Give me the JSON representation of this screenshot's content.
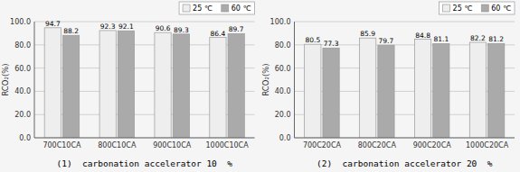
{
  "chart_data": [
    {
      "type": "bar",
      "title": "(1)  carbonation accelerator 10  %",
      "categories": [
        "700C10CA",
        "800C10CA",
        "900C10CA",
        "1000C10CA"
      ],
      "series": [
        {
          "name": "25 ℃",
          "color": "#eeeeee",
          "values": [
            94.7,
            92.3,
            90.6,
            86.4
          ]
        },
        {
          "name": "60 ℃",
          "color": "#aaaaaa",
          "values": [
            88.2,
            92.1,
            89.3,
            89.7
          ]
        }
      ],
      "y_label": "RCO₂(%)",
      "ylim": [
        0,
        100
      ],
      "yticks": [
        {
          "value": 0,
          "label": "0.0"
        },
        {
          "value": 20,
          "label": "20.0"
        },
        {
          "value": 40,
          "label": "40.0"
        },
        {
          "value": 60,
          "label": "60.0"
        },
        {
          "value": 80,
          "label": "80.0"
        },
        {
          "value": 100,
          "label": "100.0"
        }
      ],
      "grid": true,
      "data_labels": true,
      "legend": "top"
    },
    {
      "type": "bar",
      "title": "(2)  carbonation accelerator 20  %",
      "categories": [
        "700C20CA",
        "800C20CA",
        "900C20CA",
        "1000C20CA"
      ],
      "series": [
        {
          "name": "25 ℃",
          "color": "#eeeeee",
          "values": [
            80.5,
            85.9,
            84.8,
            82.2
          ]
        },
        {
          "name": "60 ℃",
          "color": "#aaaaaa",
          "values": [
            77.3,
            79.7,
            81.1,
            81.2
          ]
        }
      ],
      "y_label": "RCO₂(%)",
      "ylim": [
        0,
        100
      ],
      "yticks": [
        {
          "value": 0,
          "label": "0.0"
        },
        {
          "value": 20,
          "label": "20.0"
        },
        {
          "value": 40,
          "label": "40.0"
        },
        {
          "value": 60,
          "label": "60.0"
        },
        {
          "value": 80,
          "label": "80.0"
        },
        {
          "value": 100,
          "label": "100.0"
        }
      ],
      "grid": true,
      "data_labels": true,
      "legend": "top"
    }
  ]
}
